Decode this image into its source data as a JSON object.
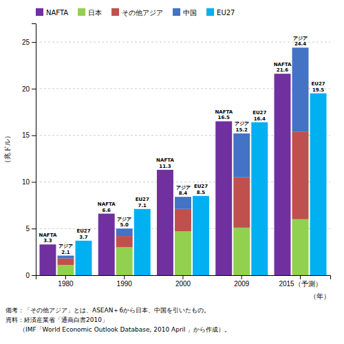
{
  "chart_data": {
    "type": "bar",
    "stacked": true,
    "data_labels": true,
    "grid": true,
    "legend": "upper left",
    "categories": [
      "1980",
      "1990",
      "2000",
      "2009",
      "2015（予測）"
    ],
    "xlabel": "（年）",
    "ylabel": "（兆ドル）",
    "ylim": [
      0,
      27
    ],
    "yticks": [
      0,
      5,
      10,
      15,
      20,
      25
    ],
    "groups": [
      {
        "label": "NAFTA",
        "series": [
          {
            "name": "NAFTA",
            "color": "#7030a0",
            "values": [
              3.3,
              6.6,
              11.3,
              16.5,
              21.6
            ]
          }
        ]
      },
      {
        "label": "アジア",
        "values": [
          2.1,
          5.0,
          8.4,
          15.2,
          24.4
        ],
        "value_labels": [
          "2.1",
          "5.0",
          "8.4",
          "15.2",
          "24.4"
        ],
        "series": [
          {
            "name": "日本",
            "color": "#92d050",
            "values": [
              1.1,
              3.0,
              4.7,
              5.1,
              6.0
            ]
          },
          {
            "name": "その他アジア",
            "color": "#c0504d",
            "values": [
              0.7,
              1.2,
              2.4,
              5.4,
              9.4
            ]
          },
          {
            "name": "中国",
            "color": "#4472c4",
            "values": [
              0.3,
              0.8,
              1.3,
              4.7,
              9.0
            ]
          }
        ]
      },
      {
        "label": "EU27",
        "series": [
          {
            "name": "EU27",
            "color": "#00b0f0",
            "values": [
              3.7,
              7.1,
              8.5,
              16.4,
              19.5
            ]
          }
        ]
      }
    ],
    "annotations": [
      "備考：「その他アジア」とは、ASEAN＋6から日本、中国を引いたもの。",
      "資料：経済産業省「通商白書2010」",
      "（IMF「World Economic Outlook Database, 2010 April 」から作成）。"
    ]
  }
}
